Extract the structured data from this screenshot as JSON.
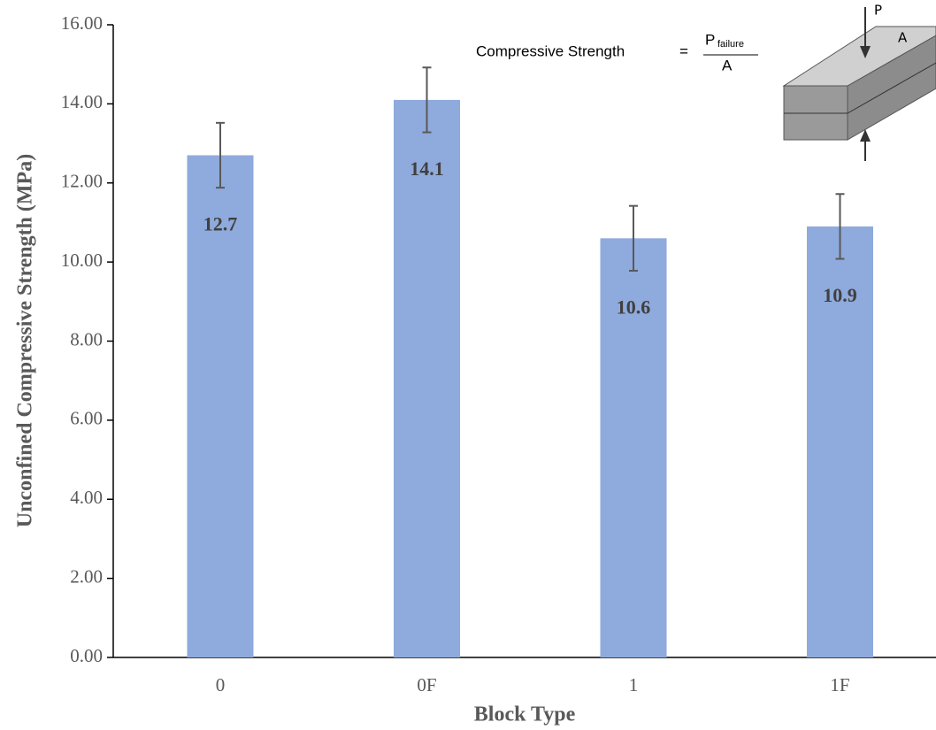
{
  "chart_data": {
    "type": "bar",
    "x_label": "Block Type",
    "y_label": "Unconfined Compressive Strength (MPa)",
    "categories": [
      "0",
      "0F",
      "1",
      "1F"
    ],
    "values": [
      12.7,
      14.1,
      10.6,
      10.9
    ],
    "errors": [
      0.82,
      0.82,
      0.82,
      0.82
    ],
    "color": "#8faadc",
    "error_color": "#595959",
    "ylim": [
      0,
      16
    ],
    "yticks": [
      {
        "value": 0,
        "label": "0.00"
      },
      {
        "value": 2,
        "label": "2.00"
      },
      {
        "value": 4,
        "label": "4.00"
      },
      {
        "value": 6,
        "label": "6.00"
      },
      {
        "value": 8,
        "label": "8.00"
      },
      {
        "value": 10,
        "label": "10.00"
      },
      {
        "value": 12,
        "label": "12.00"
      },
      {
        "value": 14,
        "label": "14.00"
      },
      {
        "value": 16,
        "label": "16.00"
      }
    ],
    "grid": false,
    "formula": {
      "label": "Compressive Strength",
      "equals": "=",
      "numerator": "P",
      "subscript": "failure",
      "denominator": "A"
    },
    "inset_labels": {
      "load": "P",
      "area": "A"
    }
  }
}
